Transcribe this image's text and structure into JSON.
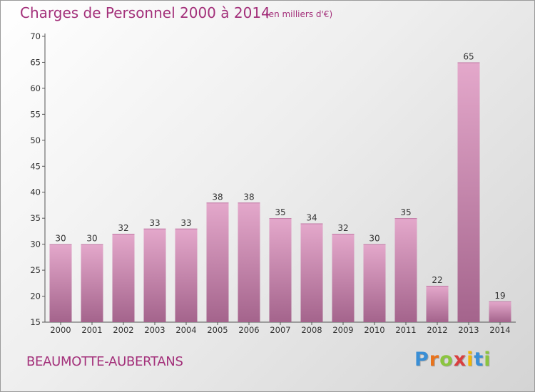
{
  "title": "Charges de Personnel 2000 à 2014",
  "subtitle": "(en milliers d'€)",
  "commune": "BEAUMOTTE-AUBERTANS",
  "brand": {
    "letters": [
      "P",
      "r",
      "o",
      "x",
      "i",
      "t",
      "i"
    ],
    "colors": [
      "#3a8fd6",
      "#e8731d",
      "#8bc53f",
      "#d93f3f",
      "#f2b705",
      "#3a8fd6",
      "#8bc53f"
    ]
  },
  "colors": {
    "bar_light": "#e4a8cb",
    "bar_dark": "#a4648c",
    "accent": "#a3307a"
  },
  "chart_data": {
    "type": "bar",
    "categories": [
      "2000",
      "2001",
      "2002",
      "2003",
      "2004",
      "2005",
      "2006",
      "2007",
      "2008",
      "2009",
      "2010",
      "2011",
      "2012",
      "2013",
      "2014"
    ],
    "values": [
      30,
      30,
      32,
      33,
      33,
      38,
      38,
      35,
      34,
      32,
      30,
      35,
      22,
      65,
      19
    ],
    "ylim": [
      15,
      70
    ],
    "yticks": [
      15,
      20,
      25,
      30,
      35,
      40,
      45,
      50,
      55,
      60,
      65,
      70
    ],
    "grid": false
  }
}
